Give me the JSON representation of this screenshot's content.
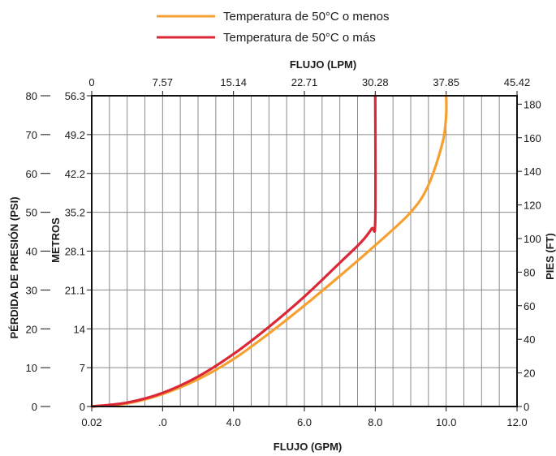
{
  "chart_data": {
    "type": "line",
    "legend": [
      {
        "label": "Temperatura de 50°C o menos",
        "color": "#f5a030"
      },
      {
        "label": "Temperatura de 50°C o más",
        "color": "#dc2737"
      }
    ],
    "legend_placement": "top-center",
    "grid": true,
    "axes": {
      "bottom": {
        "label": "FLUJO (GPM)",
        "ticks": [
          "0.02",
          ".0",
          "4.0",
          "6.0",
          "8.0",
          "10.0",
          "12.0"
        ],
        "range": [
          0,
          12
        ]
      },
      "top": {
        "label": "FLUJO (LPM)",
        "ticks": [
          "0",
          "7.57",
          "15.14",
          "22.71",
          "30.28",
          "37.85",
          "45.42"
        ]
      },
      "left": {
        "label": "PÉRDIDA DE PRESIÓN (PSI)",
        "ticks": [
          "0",
          "10",
          "20",
          "30",
          "40",
          "50",
          "60",
          "70",
          "80"
        ],
        "range": [
          0,
          80
        ]
      },
      "inner_left": {
        "label": "METROS",
        "ticks": [
          "0",
          "7",
          "14",
          "21.1",
          "28.1",
          "35.2",
          "42.2",
          "49.2",
          "56.3"
        ]
      },
      "right": {
        "label": "PIES (FT)",
        "ticks": [
          "0",
          "20",
          "40",
          "60",
          "80",
          "100",
          "120",
          "140",
          "160",
          "180"
        ],
        "range": [
          0,
          185
        ]
      }
    },
    "series": [
      {
        "name": "Temperatura de 50°C o menos",
        "color": "#f5a030",
        "x": [
          0.0,
          1.0,
          2.0,
          3.0,
          4.0,
          5.0,
          6.0,
          7.0,
          8.0,
          9.0,
          9.5,
          9.9,
          10.0,
          10.0
        ],
        "y": [
          0.0,
          0.8,
          3.2,
          7.0,
          12.2,
          18.8,
          26.0,
          33.6,
          41.5,
          50.0,
          57.0,
          68.0,
          75.0,
          80.0
        ]
      },
      {
        "name": "Temperatura de 50°C o más",
        "color": "#dc2737",
        "x": [
          0.0,
          1.0,
          2.0,
          3.0,
          4.0,
          5.0,
          6.0,
          7.0,
          7.6,
          7.9,
          8.0,
          8.0
        ],
        "y": [
          0.0,
          1.0,
          3.5,
          7.7,
          13.5,
          20.5,
          28.3,
          37.0,
          42.3,
          45.8,
          48.0,
          80.0
        ]
      }
    ]
  }
}
